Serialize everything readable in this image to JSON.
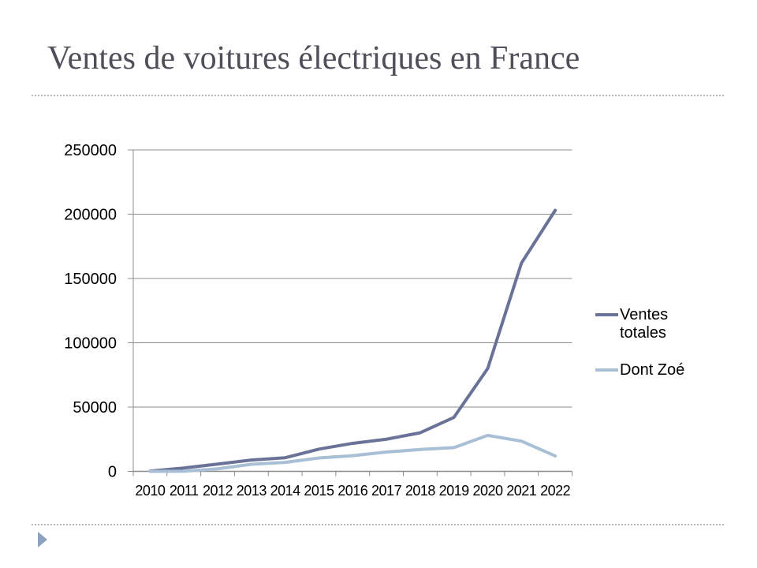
{
  "slide": {
    "title": "Ventes de voitures électriques en France"
  },
  "chart_data": {
    "type": "line",
    "title": "",
    "xlabel": "",
    "ylabel": "",
    "categories": [
      "2010",
      "2011",
      "2012",
      "2013",
      "2014",
      "2015",
      "2016",
      "2017",
      "2018",
      "2019",
      "2020",
      "2021",
      "2022"
    ],
    "series": [
      {
        "name": "Ventes totales",
        "color": "#6A7397",
        "values": [
          200,
          2600,
          5700,
          8800,
          10600,
          17300,
          21800,
          25000,
          30000,
          42000,
          80000,
          162000,
          203000
        ]
      },
      {
        "name": "Dont Zoé",
        "color": "#A9BFD5",
        "values": [
          0,
          100,
          2000,
          5500,
          7000,
          10400,
          12200,
          15000,
          17000,
          18500,
          28000,
          23500,
          12000
        ]
      }
    ],
    "ylim": [
      0,
      250000
    ],
    "yticks": [
      0,
      50000,
      100000,
      150000,
      200000,
      250000
    ],
    "grid": true,
    "grid_color": "#8C8C8C",
    "axis_color": "#8C8C8C",
    "label_color": "#000000",
    "legend_position": "right"
  },
  "decorations": {
    "divider_style": "dotted",
    "footer_arrow_icon": "right-triangle",
    "footer_arrow_color": "#8CA2BE"
  }
}
